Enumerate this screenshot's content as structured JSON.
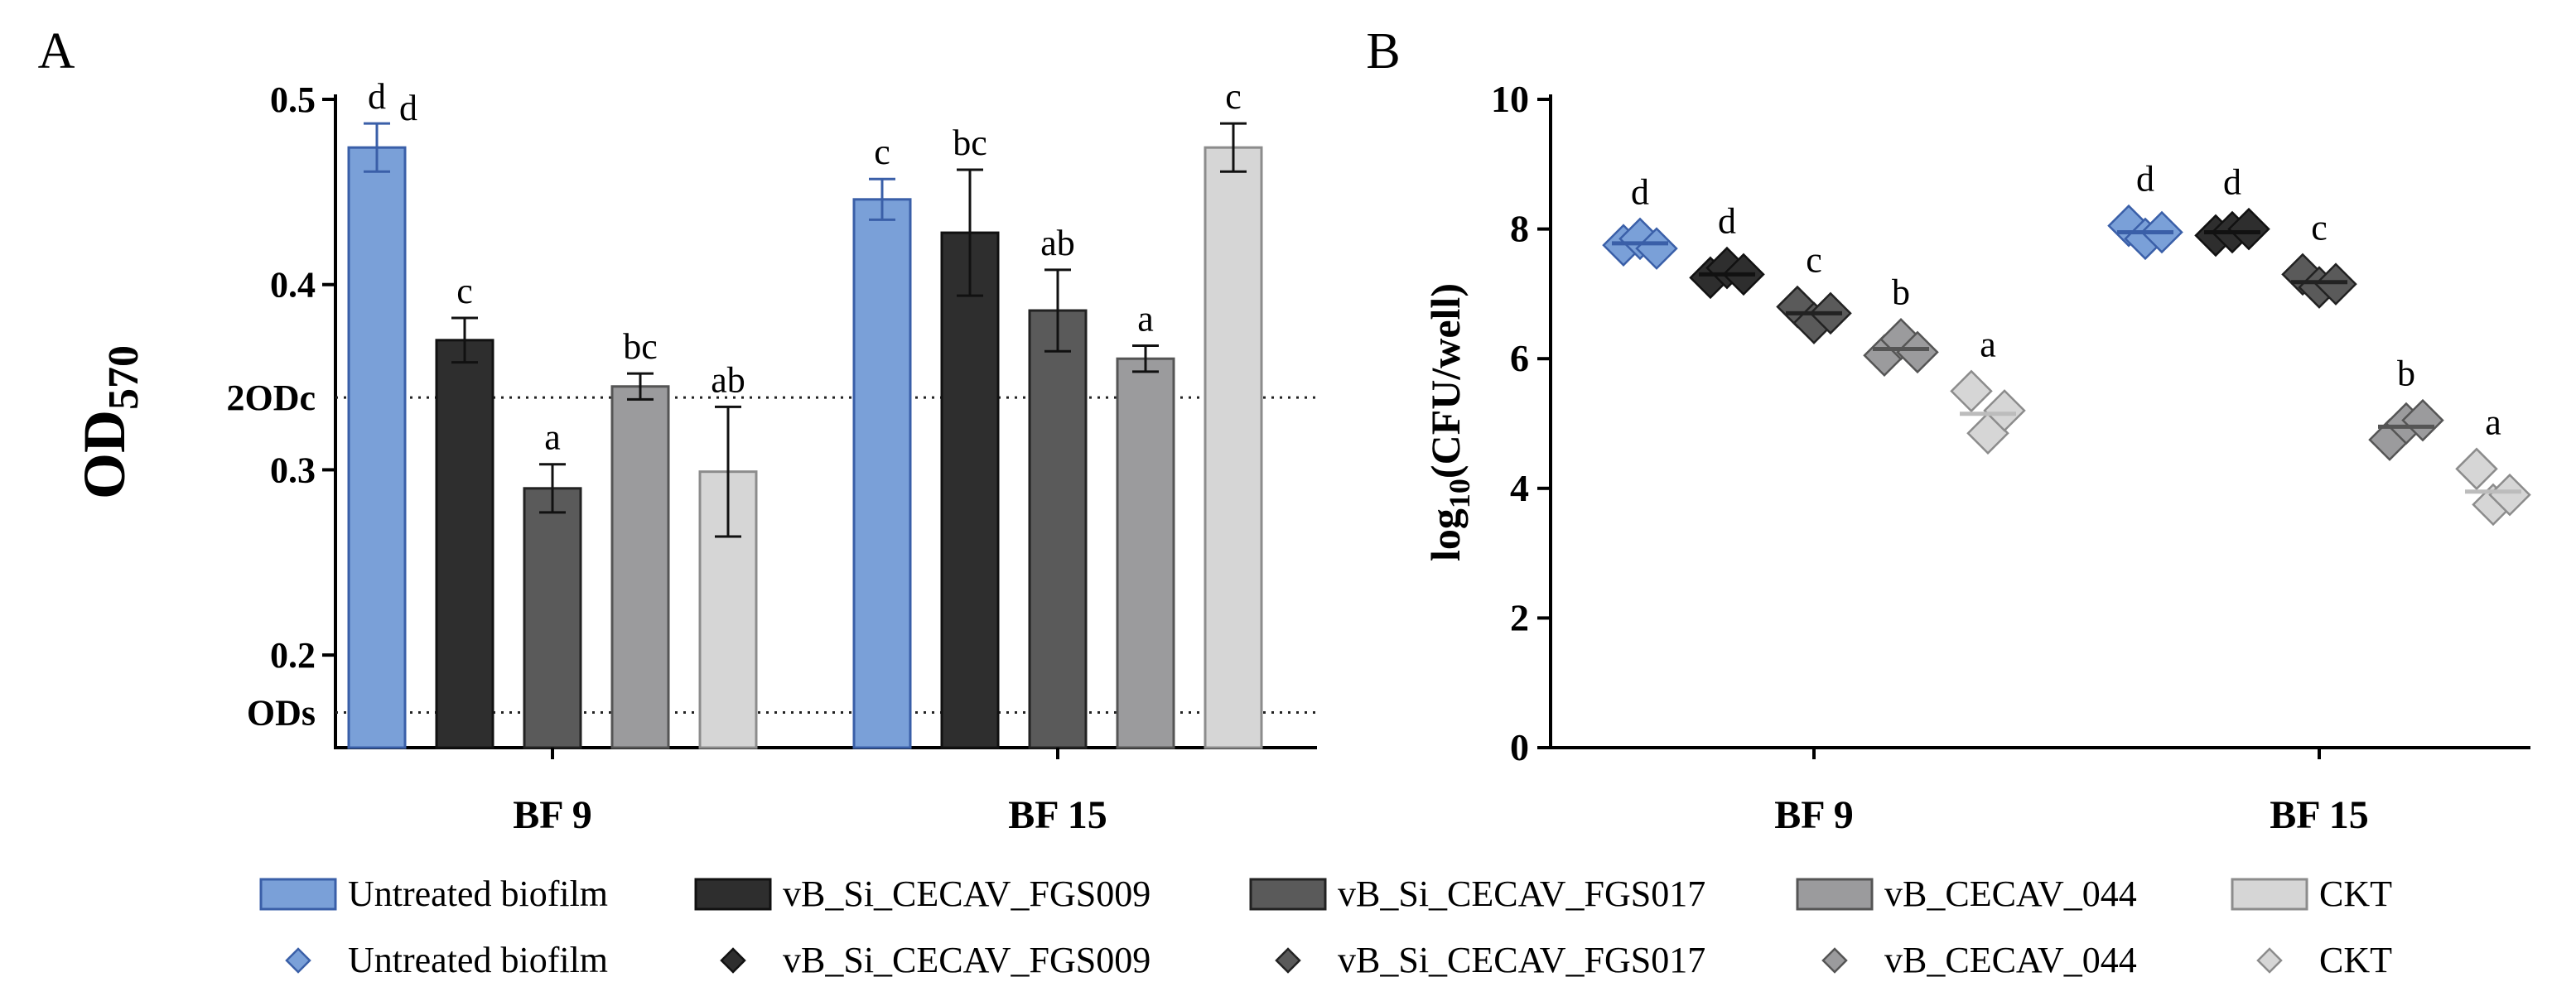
{
  "colors": {
    "untreated": "#7aa0d8",
    "untreated_edge": "#3a5fa8",
    "fgs009": "#2e2e2e",
    "fgs017": "#5a5a5a",
    "cecav044": "#9b9b9d",
    "ckt": "#d6d6d6",
    "ckt_edge": "#8c8c8c",
    "dotted": "#222222"
  },
  "legend": {
    "bars": [
      "Untreated biofilm",
      "vB_Si_CECAV_FGS009",
      "vB_Si_CECAV_FGS017",
      "vB_CECAV_044",
      "CKT"
    ],
    "points": [
      "Untreated biofilm",
      "vB_Si_CECAV_FGS009",
      "vB_Si_CECAV_FGS017",
      "vB_CECAV_044",
      "CKT"
    ]
  },
  "chart_data": [
    {
      "panel": "A",
      "type": "bar",
      "categories": [
        "BF 9",
        "BF 15"
      ],
      "ylabel": "OD",
      "ylabel_sub": "570",
      "ylim": [
        0.15,
        0.5
      ],
      "yticks": [
        0.2,
        0.3,
        0.4,
        0.5
      ],
      "ytick_labels": [
        "0.2",
        "0.3",
        "0.4",
        "0.5"
      ],
      "reference_lines": [
        {
          "label": "2ODc",
          "value": 0.339
        },
        {
          "label": "ODs",
          "value": 0.169
        }
      ],
      "series": [
        {
          "name": "Untreated biofilm",
          "values": [
            0.474,
            0.446
          ],
          "errors": [
            0.013,
            0.011
          ],
          "letters": [
            "d",
            "c"
          ]
        },
        {
          "name": "vB_Si_CECAV_FGS009",
          "values": [
            0.37,
            0.428
          ],
          "errors": [
            0.012,
            0.034
          ],
          "letters": [
            "c",
            "bc"
          ]
        },
        {
          "name": "vB_Si_CECAV_FGS017",
          "values": [
            0.29,
            0.386
          ],
          "errors": [
            0.013,
            0.022
          ],
          "letters": [
            "a",
            "ab"
          ]
        },
        {
          "name": "vB_CECAV_044",
          "values": [
            0.345,
            0.36
          ],
          "errors": [
            0.007,
            0.007
          ],
          "letters": [
            "bc",
            "a"
          ]
        },
        {
          "name": "CKT",
          "values": [
            0.299,
            0.474
          ],
          "errors": [
            0.035,
            0.013
          ],
          "letters": [
            "ab",
            "c"
          ]
        }
      ],
      "extra_annotations": [
        {
          "text": "d",
          "near": "BF 9 Untreated biofilm"
        }
      ]
    },
    {
      "panel": "B",
      "type": "scatter",
      "categories": [
        "BF 9",
        "BF 15"
      ],
      "ylabel": "log",
      "ylabel_sub": "10",
      "ylabel_rest": "(CFU/well)",
      "ylim": [
        0,
        10
      ],
      "yticks": [
        0,
        2,
        4,
        6,
        8,
        10
      ],
      "ytick_labels": [
        "0",
        "2",
        "4",
        "6",
        "8",
        "10"
      ],
      "series": [
        {
          "name": "Untreated biofilm",
          "points": [
            [
              7.75,
              7.85,
              7.7
            ],
            [
              8.05,
              7.85,
              7.95
            ]
          ],
          "means": [
            7.78,
            7.95
          ],
          "letters": [
            "d",
            "d"
          ]
        },
        {
          "name": "vB_Si_CECAV_FGS009",
          "points": [
            [
              7.25,
              7.4,
              7.3
            ],
            [
              7.9,
              7.95,
              8.0
            ]
          ],
          "means": [
            7.3,
            7.95
          ],
          "letters": [
            "d",
            "d"
          ]
        },
        {
          "name": "vB_Si_CECAV_FGS017",
          "points": [
            [
              6.8,
              6.55,
              6.7
            ],
            [
              7.3,
              7.1,
              7.15
            ]
          ],
          "means": [
            6.7,
            7.18
          ],
          "letters": [
            "c",
            "c"
          ]
        },
        {
          "name": "vB_CECAV_044",
          "points": [
            [
              6.05,
              6.3,
              6.1
            ],
            [
              4.75,
              5.0,
              5.05
            ]
          ],
          "means": [
            6.15,
            4.95
          ],
          "letters": [
            "b",
            "b"
          ]
        },
        {
          "name": "CKT",
          "points": [
            [
              5.5,
              4.85,
              5.2
            ],
            [
              4.3,
              3.75,
              3.9
            ]
          ],
          "means": [
            5.15,
            3.95
          ],
          "letters": [
            "a",
            "a"
          ]
        }
      ]
    }
  ],
  "panel_labels": [
    "A",
    "B"
  ]
}
